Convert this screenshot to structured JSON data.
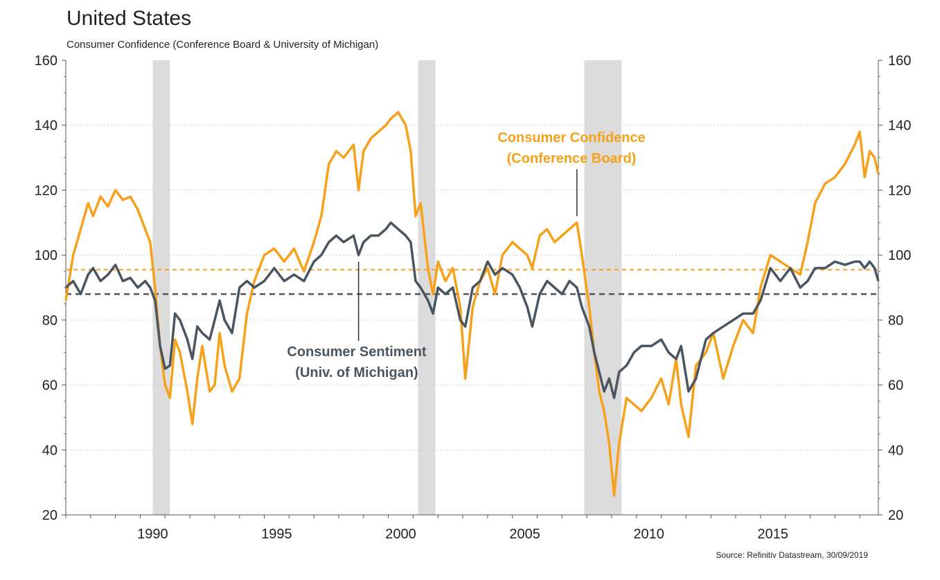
{
  "header": {
    "title": "United States",
    "subtitle": "Consumer Confidence (Conference Board & University of Michigan)",
    "source": "Source: Refinitiv Datastream, 30/09/2019"
  },
  "colors": {
    "conference_board": "#F7A11A",
    "michigan": "#4A5560",
    "recession": "#DCDCDC",
    "grid": "#CFCFCF"
  },
  "chart_data": {
    "type": "line",
    "title": "United States",
    "subtitle": "Consumer Confidence (Conference Board & University of Michigan)",
    "xlim": [
      1987.0,
      2019.75
    ],
    "ylim": [
      20,
      160
    ],
    "y_ticks": [
      20,
      40,
      60,
      80,
      100,
      120,
      140,
      160
    ],
    "x_ticks": [
      1990,
      1995,
      2000,
      2005,
      2010,
      2015
    ],
    "grid": "horizontal dotted",
    "recessions": [
      [
        1990.5,
        1991.2
      ],
      [
        2001.2,
        2001.9
      ],
      [
        2007.9,
        2009.4
      ]
    ],
    "series": [
      {
        "name": "Consumer Confidence\n(Conference Board)",
        "mean": 95.5,
        "x": [
          1987.0,
          1987.3,
          1987.6,
          1987.9,
          1988.1,
          1988.4,
          1988.7,
          1989.0,
          1989.3,
          1989.6,
          1989.9,
          1990.2,
          1990.4,
          1990.6,
          1990.8,
          1991.0,
          1991.2,
          1991.4,
          1991.6,
          1991.9,
          1992.1,
          1992.3,
          1992.5,
          1992.8,
          1993.0,
          1993.2,
          1993.4,
          1993.7,
          1994.0,
          1994.3,
          1994.6,
          1995.0,
          1995.4,
          1995.8,
          1996.2,
          1996.6,
          1997.0,
          1997.3,
          1997.6,
          1997.9,
          1998.2,
          1998.6,
          1998.8,
          1999.0,
          1999.3,
          1999.6,
          1999.9,
          2000.1,
          2000.4,
          2000.7,
          2000.9,
          2001.1,
          2001.3,
          2001.6,
          2001.8,
          2002.0,
          2002.3,
          2002.6,
          2002.9,
          2003.1,
          2003.4,
          2003.7,
          2004.0,
          2004.3,
          2004.6,
          2005.0,
          2005.3,
          2005.6,
          2005.8,
          2006.1,
          2006.4,
          2006.7,
          2007.0,
          2007.3,
          2007.6,
          2007.8,
          2008.1,
          2008.3,
          2008.5,
          2008.7,
          2008.9,
          2009.1,
          2009.3,
          2009.6,
          2009.9,
          2010.2,
          2010.6,
          2011.0,
          2011.3,
          2011.6,
          2011.8,
          2012.1,
          2012.4,
          2012.8,
          2013.1,
          2013.5,
          2013.9,
          2014.3,
          2014.7,
          2015.0,
          2015.4,
          2015.8,
          2016.2,
          2016.6,
          2016.9,
          2017.2,
          2017.6,
          2018.0,
          2018.4,
          2018.8,
          2019.0,
          2019.2,
          2019.4,
          2019.6,
          2019.75
        ],
        "y": [
          86,
          100,
          108,
          116,
          112,
          118,
          115,
          120,
          117,
          118,
          114,
          108,
          104,
          90,
          72,
          60,
          56,
          74,
          70,
          58,
          48,
          62,
          72,
          58,
          60,
          76,
          66,
          58,
          62,
          82,
          92,
          100,
          102,
          98,
          102,
          95,
          104,
          112,
          128,
          132,
          130,
          134,
          120,
          132,
          136,
          138,
          140,
          142,
          144,
          140,
          132,
          112,
          116,
          96,
          88,
          98,
          92,
          96,
          84,
          62,
          84,
          92,
          96,
          88,
          100,
          104,
          102,
          100,
          96,
          106,
          108,
          104,
          106,
          108,
          110,
          100,
          84,
          70,
          58,
          52,
          42,
          26,
          42,
          56,
          54,
          52,
          56,
          62,
          54,
          68,
          54,
          44,
          66,
          70,
          76,
          62,
          72,
          80,
          76,
          90,
          100,
          98,
          96,
          94,
          104,
          116,
          122,
          124,
          128,
          134,
          138,
          124,
          132,
          130,
          125
        ]
      },
      {
        "name": "Consumer Sentiment\n(Univ. of Michigan)",
        "mean": 88,
        "x": [
          1987.0,
          1987.3,
          1987.6,
          1987.9,
          1988.1,
          1988.4,
          1988.7,
          1989.0,
          1989.3,
          1989.6,
          1989.9,
          1990.2,
          1990.4,
          1990.6,
          1990.8,
          1991.0,
          1991.2,
          1991.4,
          1991.6,
          1991.9,
          1992.1,
          1992.3,
          1992.5,
          1992.8,
          1993.0,
          1993.2,
          1993.4,
          1993.7,
          1994.0,
          1994.3,
          1994.6,
          1995.0,
          1995.4,
          1995.8,
          1996.2,
          1996.6,
          1997.0,
          1997.3,
          1997.6,
          1997.9,
          1998.2,
          1998.6,
          1998.8,
          1999.0,
          1999.3,
          1999.6,
          1999.9,
          2000.1,
          2000.4,
          2000.7,
          2000.9,
          2001.1,
          2001.3,
          2001.6,
          2001.8,
          2002.0,
          2002.3,
          2002.6,
          2002.9,
          2003.1,
          2003.4,
          2003.7,
          2004.0,
          2004.3,
          2004.6,
          2005.0,
          2005.3,
          2005.6,
          2005.8,
          2006.1,
          2006.4,
          2006.7,
          2007.0,
          2007.3,
          2007.6,
          2007.8,
          2008.1,
          2008.3,
          2008.5,
          2008.7,
          2008.9,
          2009.1,
          2009.3,
          2009.6,
          2009.9,
          2010.2,
          2010.6,
          2011.0,
          2011.3,
          2011.6,
          2011.8,
          2012.1,
          2012.4,
          2012.8,
          2013.1,
          2013.5,
          2013.9,
          2014.3,
          2014.7,
          2015.0,
          2015.4,
          2015.8,
          2016.2,
          2016.6,
          2016.9,
          2017.2,
          2017.6,
          2018.0,
          2018.4,
          2018.8,
          2019.0,
          2019.2,
          2019.4,
          2019.6,
          2019.75
        ],
        "y": [
          90,
          92,
          88,
          94,
          96,
          92,
          94,
          97,
          92,
          93,
          90,
          92,
          90,
          86,
          72,
          65,
          66,
          82,
          80,
          74,
          68,
          78,
          76,
          74,
          80,
          86,
          80,
          76,
          90,
          92,
          90,
          92,
          96,
          92,
          94,
          92,
          98,
          100,
          104,
          106,
          104,
          106,
          100,
          104,
          106,
          106,
          108,
          110,
          108,
          106,
          104,
          92,
          90,
          86,
          82,
          90,
          88,
          90,
          80,
          78,
          90,
          92,
          98,
          94,
          96,
          94,
          90,
          84,
          78,
          88,
          92,
          90,
          88,
          92,
          90,
          84,
          78,
          70,
          64,
          58,
          62,
          56,
          64,
          66,
          70,
          72,
          72,
          74,
          70,
          68,
          72,
          58,
          62,
          74,
          76,
          78,
          80,
          82,
          82,
          86,
          96,
          92,
          96,
          90,
          92,
          96,
          96,
          98,
          97,
          98,
          98,
          96,
          98,
          96,
          92
        ]
      }
    ],
    "annotations": [
      {
        "text": "Consumer Confidence\n(Conference Board)",
        "series": 0,
        "pointer_x": 2007.6
      },
      {
        "text": "Consumer Sentiment\n(Univ. of Michigan)",
        "series": 1,
        "pointer_x": 1998.8
      }
    ]
  }
}
